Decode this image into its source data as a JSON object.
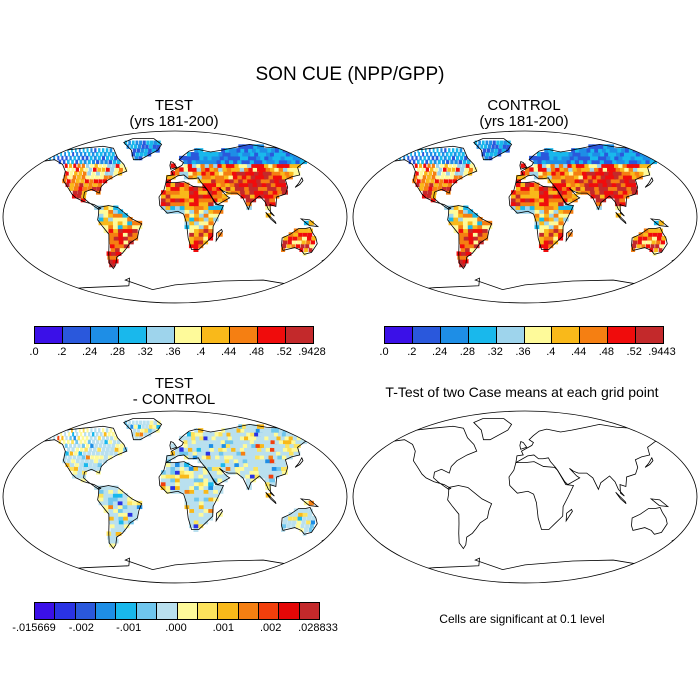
{
  "title": "SON CUE (NPP/GPP)",
  "panels": {
    "test": {
      "title_line1": "TEST",
      "title_line2": "(yrs 181-200)"
    },
    "control": {
      "title_line1": "CONTROL",
      "title_line2": "(yrs 181-200)"
    },
    "diff": {
      "title_line1": "TEST",
      "title_line2": "- CONTROL"
    },
    "ttest": {
      "title": "T-Test of two Case means at each grid point",
      "note": "Cells are significant at 0.1 level"
    }
  },
  "colorbars": {
    "test": {
      "colors": [
        "#3b10e8",
        "#2a58dc",
        "#1e8ee6",
        "#19b8ec",
        "#9ed4ec",
        "#fefa9a",
        "#f9b91a",
        "#f57f12",
        "#f00c0c",
        "#c3292b"
      ],
      "labels": [
        ".0",
        ".2",
        ".24",
        ".28",
        ".32",
        ".36",
        ".4",
        ".44",
        ".48",
        ".52",
        ".9428"
      ]
    },
    "control": {
      "colors": [
        "#3b10e8",
        "#2a58dc",
        "#1e8ee6",
        "#19b8ec",
        "#9ed4ec",
        "#fefa9a",
        "#f9b91a",
        "#f57f12",
        "#f00c0c",
        "#c3292b"
      ],
      "labels": [
        ".0",
        ".2",
        ".24",
        ".28",
        ".32",
        ".36",
        ".4",
        ".44",
        ".48",
        ".52",
        ".9443"
      ]
    },
    "diff": {
      "colors": [
        "#3b10e8",
        "#2a33e4",
        "#2a58dc",
        "#1e8ee6",
        "#19b8ec",
        "#6fc6ee",
        "#b9e0ef",
        "#fefa9a",
        "#fde35c",
        "#f9b91a",
        "#f57f12",
        "#f23f0c",
        "#e40707",
        "#c3292b"
      ],
      "labels": [
        "-.015669",
        "-.002",
        "-.001",
        ".000",
        ".001",
        ".002",
        ".028833"
      ]
    }
  },
  "colors": {
    "ocean": "#ffffff",
    "coast": "#000000"
  }
}
